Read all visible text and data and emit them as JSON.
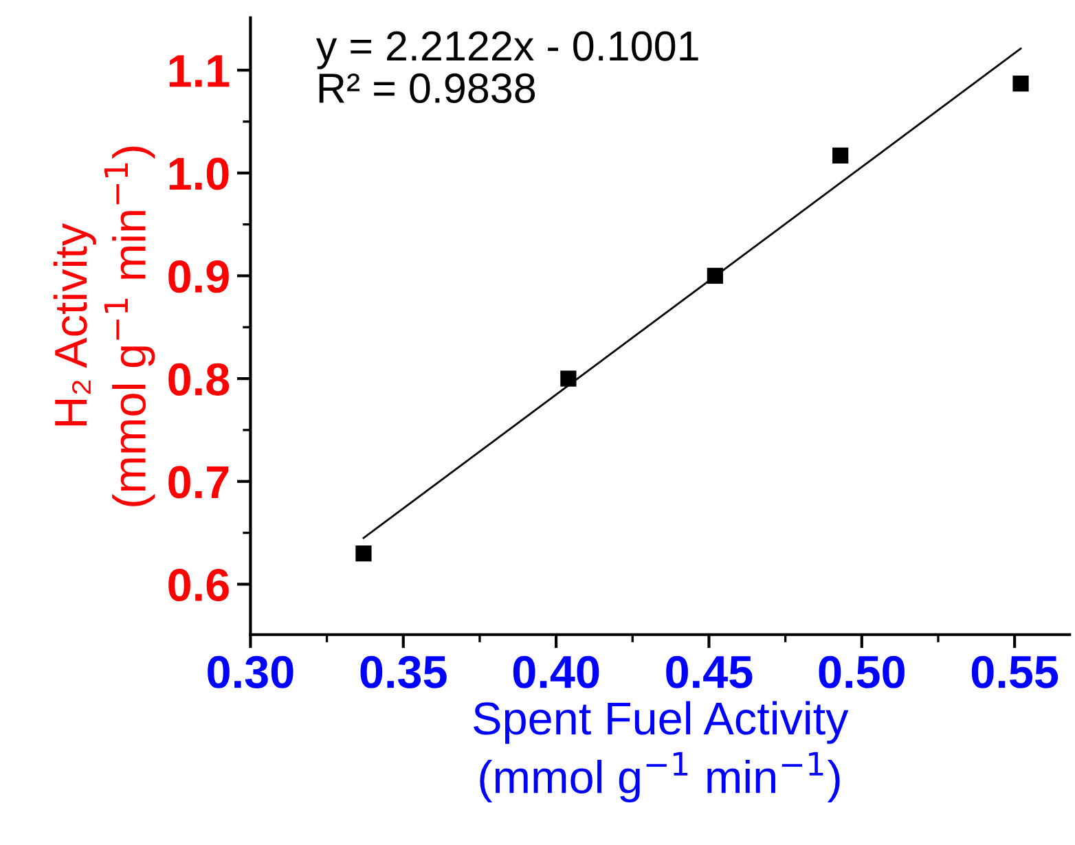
{
  "chart_data": {
    "type": "scatter",
    "xlabel": "Spent Fuel Activity\n(mmol g$^{−1}$ min$^{−1}$)",
    "ylabel": "H₂ Activity\n(mmol g$^{−1}$ min$^{−1}$)",
    "annotations": [
      "y = 2.2122x - 0.1001\nR² = 0.9838"
    ],
    "series": [
      {
        "color": "#000000",
        "marker": "square",
        "x": [
          0.337,
          0.404,
          0.452,
          0.493,
          0.552
        ],
        "values": [
          0.63,
          0.8,
          0.9,
          1.017,
          1.087
        ]
      },
      {
        "type": "line",
        "color": "#000000",
        "marker": "none",
        "line_style": "solid",
        "x": [
          0.337,
          0.552
        ],
        "values": [
          0.645,
          1.121
        ]
      }
    ],
    "xlim": [
      0.3,
      0.568
    ],
    "ylim": [
      0.551,
      1.151
    ],
    "xticks": [
      {
        "value": 0.3,
        "label": "0.30"
      },
      {
        "value": 0.35,
        "label": "0.35"
      },
      {
        "value": 0.4,
        "label": "0.40"
      },
      {
        "value": 0.45,
        "label": "0.45"
      },
      {
        "value": 0.5,
        "label": "0.50"
      },
      {
        "value": 0.55,
        "label": "0.55"
      }
    ],
    "yticks": [
      0.6,
      0.7,
      0.8,
      0.9,
      {
        "value": 1.0,
        "label": "1.0"
      },
      1.1
    ],
    "grid": false,
    "legend": false
  }
}
